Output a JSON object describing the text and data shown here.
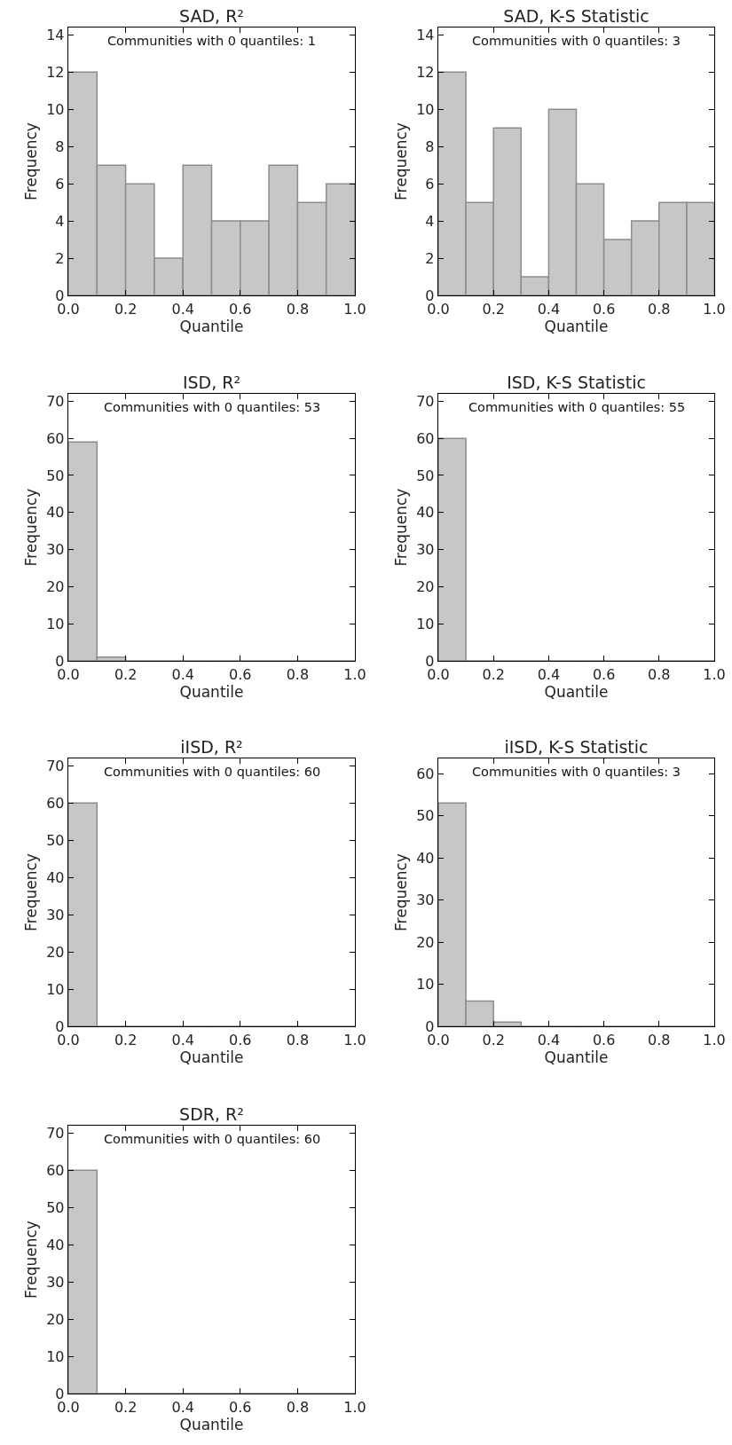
{
  "chart_data": [
    {
      "type": "histogram",
      "title": "SAD, R²",
      "xlabel": "Quantile",
      "ylabel": "Frequency",
      "annotations": [
        "Communities with 0 quantiles: 1"
      ],
      "bins": [
        0,
        0.1,
        0.2,
        0.3,
        0.4,
        0.5,
        0.6,
        0.7,
        0.8,
        0.9,
        1.0
      ],
      "values": [
        12,
        7,
        6,
        2,
        7,
        4,
        4,
        7,
        5,
        6
      ],
      "color": "#c6c7c9",
      "xlim": [
        0,
        1
      ],
      "xticks": [
        {
          "value": 0,
          "label": "0.0"
        },
        {
          "value": 0.2,
          "label": "0.2"
        },
        {
          "value": 0.4,
          "label": "0.4"
        },
        {
          "value": 0.6,
          "label": "0.6"
        },
        {
          "value": 0.8,
          "label": "0.8"
        },
        {
          "value": 1,
          "label": "1.0"
        }
      ],
      "ylim": [
        0,
        14.4
      ],
      "yticks": [
        0,
        2,
        4,
        6,
        8,
        10,
        12,
        14
      ],
      "grid": false
    },
    {
      "type": "histogram",
      "title": "SAD, K-S Statistic",
      "xlabel": "Quantile",
      "ylabel": "Frequency",
      "annotations": [
        "Communities with 0 quantiles: 3"
      ],
      "bins": [
        0,
        0.1,
        0.2,
        0.3,
        0.4,
        0.5,
        0.6,
        0.7,
        0.8,
        0.9,
        1.0
      ],
      "values": [
        12,
        5,
        9,
        1,
        10,
        6,
        3,
        4,
        5,
        5
      ],
      "color": "#c6c7c9",
      "xlim": [
        0,
        1
      ],
      "xticks": [
        {
          "value": 0,
          "label": "0.0"
        },
        {
          "value": 0.2,
          "label": "0.2"
        },
        {
          "value": 0.4,
          "label": "0.4"
        },
        {
          "value": 0.6,
          "label": "0.6"
        },
        {
          "value": 0.8,
          "label": "0.8"
        },
        {
          "value": 1,
          "label": "1.0"
        }
      ],
      "ylim": [
        0,
        14.4
      ],
      "yticks": [
        0,
        2,
        4,
        6,
        8,
        10,
        12,
        14
      ],
      "grid": false
    },
    {
      "type": "histogram",
      "title": "ISD, R²",
      "xlabel": "Quantile",
      "ylabel": "Frequency",
      "annotations": [
        "Communities with 0 quantiles: 53"
      ],
      "bins": [
        0,
        0.1,
        0.2,
        0.3,
        0.4,
        0.5,
        0.6,
        0.7,
        0.8,
        0.9,
        1.0
      ],
      "values": [
        59,
        1,
        0,
        0,
        0,
        0,
        0,
        0,
        0,
        0
      ],
      "color": "#c6c7c9",
      "xlim": [
        0,
        1
      ],
      "xticks": [
        {
          "value": 0,
          "label": "0.0"
        },
        {
          "value": 0.2,
          "label": "0.2"
        },
        {
          "value": 0.4,
          "label": "0.4"
        },
        {
          "value": 0.6,
          "label": "0.6"
        },
        {
          "value": 0.8,
          "label": "0.8"
        },
        {
          "value": 1,
          "label": "1.0"
        }
      ],
      "ylim": [
        0,
        72
      ],
      "yticks": [
        0,
        10,
        20,
        30,
        40,
        50,
        60,
        70
      ],
      "grid": false
    },
    {
      "type": "histogram",
      "title": "ISD, K-S Statistic",
      "xlabel": "Quantile",
      "ylabel": "Frequency",
      "annotations": [
        "Communities with 0 quantiles: 55"
      ],
      "bins": [
        0,
        0.1,
        0.2,
        0.3,
        0.4,
        0.5,
        0.6,
        0.7,
        0.8,
        0.9,
        1.0
      ],
      "values": [
        60,
        0,
        0,
        0,
        0,
        0,
        0,
        0,
        0,
        0
      ],
      "color": "#c6c7c9",
      "xlim": [
        0,
        1
      ],
      "xticks": [
        {
          "value": 0,
          "label": "0.0"
        },
        {
          "value": 0.2,
          "label": "0.2"
        },
        {
          "value": 0.4,
          "label": "0.4"
        },
        {
          "value": 0.6,
          "label": "0.6"
        },
        {
          "value": 0.8,
          "label": "0.8"
        },
        {
          "value": 1,
          "label": "1.0"
        }
      ],
      "ylim": [
        0,
        72
      ],
      "yticks": [
        0,
        10,
        20,
        30,
        40,
        50,
        60,
        70
      ],
      "grid": false
    },
    {
      "type": "histogram",
      "title": "iISD, R²",
      "xlabel": "Quantile",
      "ylabel": "Frequency",
      "annotations": [
        "Communities with 0 quantiles: 60"
      ],
      "bins": [
        0,
        0.1,
        0.2,
        0.3,
        0.4,
        0.5,
        0.6,
        0.7,
        0.8,
        0.9,
        1.0
      ],
      "values": [
        60,
        0,
        0,
        0,
        0,
        0,
        0,
        0,
        0,
        0
      ],
      "color": "#c6c7c9",
      "xlim": [
        0,
        1
      ],
      "xticks": [
        {
          "value": 0,
          "label": "0.0"
        },
        {
          "value": 0.2,
          "label": "0.2"
        },
        {
          "value": 0.4,
          "label": "0.4"
        },
        {
          "value": 0.6,
          "label": "0.6"
        },
        {
          "value": 0.8,
          "label": "0.8"
        },
        {
          "value": 1,
          "label": "1.0"
        }
      ],
      "ylim": [
        0,
        72
      ],
      "yticks": [
        0,
        10,
        20,
        30,
        40,
        50,
        60,
        70
      ],
      "grid": false
    },
    {
      "type": "histogram",
      "title": "iISD, K-S Statistic",
      "xlabel": "Quantile",
      "ylabel": "Frequency",
      "annotations": [
        "Communities with 0 quantiles: 3"
      ],
      "bins": [
        0,
        0.1,
        0.2,
        0.3,
        0.4,
        0.5,
        0.6,
        0.7,
        0.8,
        0.9,
        1.0
      ],
      "values": [
        53,
        6,
        1,
        0,
        0,
        0,
        0,
        0,
        0,
        0
      ],
      "color": "#c6c7c9",
      "xlim": [
        0,
        1
      ],
      "xticks": [
        {
          "value": 0,
          "label": "0.0"
        },
        {
          "value": 0.2,
          "label": "0.2"
        },
        {
          "value": 0.4,
          "label": "0.4"
        },
        {
          "value": 0.6,
          "label": "0.6"
        },
        {
          "value": 0.8,
          "label": "0.8"
        },
        {
          "value": 1,
          "label": "1.0"
        }
      ],
      "ylim": [
        0,
        63.6
      ],
      "yticks": [
        0,
        10,
        20,
        30,
        40,
        50,
        60
      ],
      "grid": false
    },
    {
      "type": "histogram",
      "title": "SDR, R²",
      "xlabel": "Quantile",
      "ylabel": "Frequency",
      "annotations": [
        "Communities with 0 quantiles: 60"
      ],
      "bins": [
        0,
        0.1,
        0.2,
        0.3,
        0.4,
        0.5,
        0.6,
        0.7,
        0.8,
        0.9,
        1.0
      ],
      "values": [
        60,
        0,
        0,
        0,
        0,
        0,
        0,
        0,
        0,
        0
      ],
      "color": "#c6c7c9",
      "xlim": [
        0,
        1
      ],
      "xticks": [
        {
          "value": 0,
          "label": "0.0"
        },
        {
          "value": 0.2,
          "label": "0.2"
        },
        {
          "value": 0.4,
          "label": "0.4"
        },
        {
          "value": 0.6,
          "label": "0.6"
        },
        {
          "value": 0.8,
          "label": "0.8"
        },
        {
          "value": 1,
          "label": "1.0"
        }
      ],
      "ylim": [
        0,
        72
      ],
      "yticks": [
        0,
        10,
        20,
        30,
        40,
        50,
        60,
        70
      ],
      "grid": false
    }
  ]
}
